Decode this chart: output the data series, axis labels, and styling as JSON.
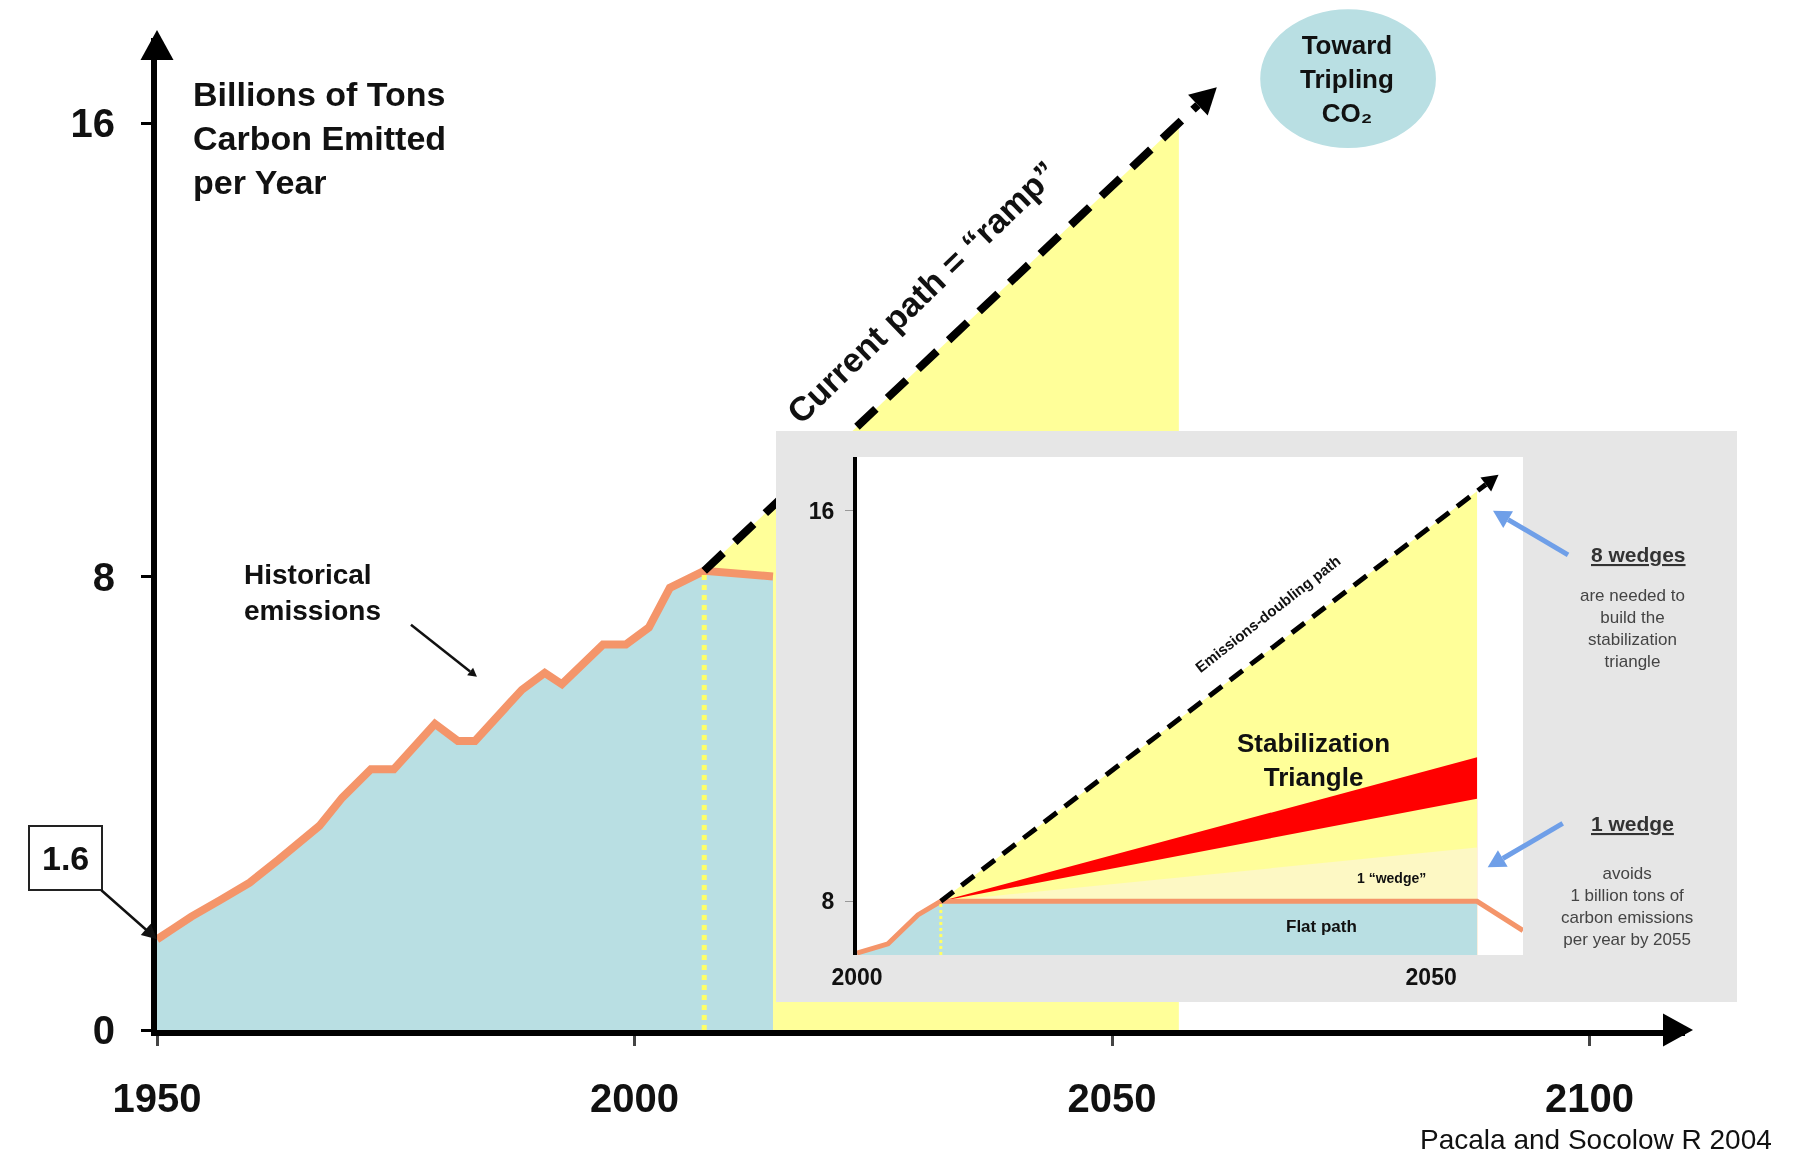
{
  "chart_data": [
    {
      "type": "area",
      "ylabel": "Billions of Tons Carbon Emitted per Year",
      "xlim": [
        1950,
        2110
      ],
      "ylim": [
        0,
        17.5
      ],
      "xticks": [
        1950,
        2000,
        2050,
        2100
      ],
      "yticks": [
        0,
        8,
        16
      ],
      "series": [
        {
          "color": "#ffff99",
          "x": [
            2007.3,
            2057
          ],
          "values": [
            8.1,
            16
          ]
        },
        {
          "color": "#b9dfe3",
          "x": [
            1950,
            1951.8,
            1953.6,
            1956.7,
            1959.7,
            1962.7,
            1967,
            1969.4,
            1972.4,
            1974.8,
            1979.1,
            1981.5,
            1983.3,
            1988.2,
            1990.6,
            1992.4,
            1996.7,
            1999.1,
            2001.5,
            2003.7,
            2007.3,
            2014.5
          ],
          "values": [
            1.6,
            1.8,
            2.0,
            2.3,
            2.6,
            3.0,
            3.6,
            4.1,
            4.6,
            4.6,
            5.4,
            5.1,
            5.1,
            6.0,
            6.3,
            6.1,
            6.8,
            6.8,
            7.1,
            7.8,
            8.1,
            8.0
          ]
        },
        {
          "type": "line",
          "color": "#f4956a",
          "x": [
            1950,
            1951.8,
            1953.6,
            1956.7,
            1959.7,
            1962.7,
            1967,
            1969.4,
            1972.4,
            1974.8,
            1979.1,
            1981.5,
            1983.3,
            1988.2,
            1990.6,
            1992.4,
            1996.7,
            1999.1,
            2001.5,
            2003.7,
            2007.3,
            2014.5
          ],
          "values": [
            1.6,
            1.8,
            2.0,
            2.3,
            2.6,
            3.0,
            3.6,
            4.1,
            4.6,
            4.6,
            5.4,
            5.1,
            5.1,
            6.0,
            6.3,
            6.1,
            6.8,
            6.8,
            7.1,
            7.8,
            8.1,
            8.0
          ]
        }
      ],
      "ref_lines": [
        {
          "axis": "x",
          "value": 2007.3,
          "color": "#ffff66",
          "line_style": "dotted"
        }
      ],
      "annotations": [
        {
          "text": "1.6",
          "x": 1950,
          "y": 1.6
        },
        "Historical\nemissions",
        "Current path = “ramp”",
        "Toward\nTripling\nCO₂",
        "Pacala and Socolow R 2004"
      ]
    },
    {
      "type": "area",
      "xlim": [
        2000,
        2058
      ],
      "ylim": [
        6.9,
        17.1
      ],
      "xticks": [
        2000,
        2050
      ],
      "yticks": [
        8,
        16
      ],
      "series": [
        {
          "color": "#ffff99",
          "x": [
            2007.3,
            2054
          ],
          "values": [
            8,
            16.4
          ]
        },
        {
          "color": "#ff0000",
          "x": [
            2007.3,
            2054
          ],
          "values": [
            8,
            10.95
          ]
        },
        {
          "color": "#fffe9a",
          "x": [
            2007.3,
            2054
          ],
          "values": [
            8,
            10.1
          ]
        },
        {
          "color": "#fdf8c4",
          "x": [
            2007.3,
            2054
          ],
          "values": [
            8,
            9.1
          ]
        },
        {
          "color": "#b9dfe3",
          "x": [
            2000,
            2002.7,
            2005.3,
            2007.3,
            2054
          ],
          "values": [
            6.94,
            7.13,
            7.72,
            8,
            8
          ]
        },
        {
          "type": "line",
          "color": "#f4956a",
          "x": [
            2000,
            2002.7,
            2005.3,
            2007.3,
            2054,
            2058
          ],
          "values": [
            6.94,
            7.13,
            7.72,
            8,
            8,
            7.4
          ]
        }
      ],
      "ref_lines": [
        {
          "axis": "x",
          "value": 2007.3,
          "color": "#ffff66",
          "line_style": "dotted"
        }
      ],
      "annotations": [
        "Emissions-doubling path",
        "Stabilization\nTriangle",
        "1 “wedge”",
        "Flat path",
        "8 wedges",
        "are needed to\nbuild the\nstabilization\ntriangle",
        "1 wedge",
        "avoids\n1 billion tons of\ncarbon emissions\nper year by 2055"
      ]
    }
  ]
}
